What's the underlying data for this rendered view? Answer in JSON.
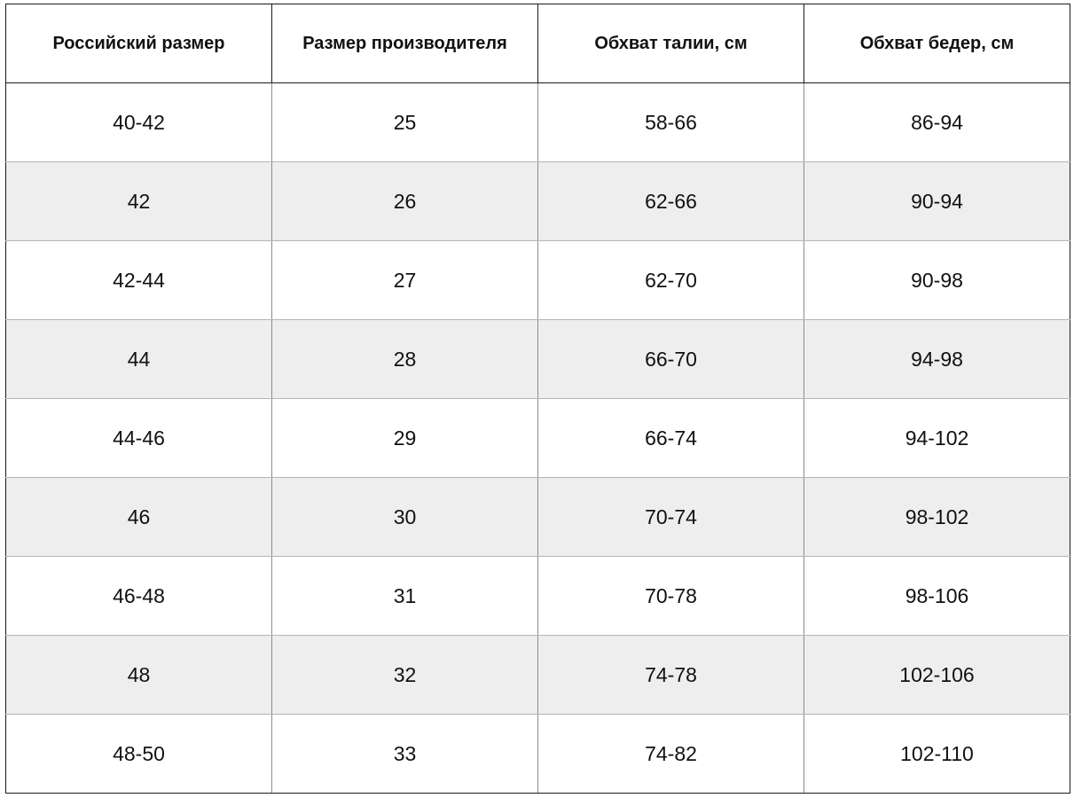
{
  "table": {
    "headers": [
      "Российский размер",
      "Размер производителя",
      "Обхват талии, см",
      "Обхват бедер, см"
    ],
    "rows": [
      [
        "40-42",
        "25",
        "58-66",
        "86-94"
      ],
      [
        "42",
        "26",
        "62-66",
        "90-94"
      ],
      [
        "42-44",
        "27",
        "62-70",
        "90-98"
      ],
      [
        "44",
        "28",
        "66-70",
        "94-98"
      ],
      [
        "44-46",
        "29",
        "66-74",
        "94-102"
      ],
      [
        "46",
        "30",
        "70-74",
        "98-102"
      ],
      [
        "46-48",
        "31",
        "70-78",
        "98-106"
      ],
      [
        "48",
        "32",
        "74-78",
        "102-106"
      ],
      [
        "48-50",
        "33",
        "74-82",
        "102-110"
      ]
    ]
  },
  "colors": {
    "stripe": "#eeeeee",
    "border": "#1a1a1a",
    "text": "#111111"
  }
}
